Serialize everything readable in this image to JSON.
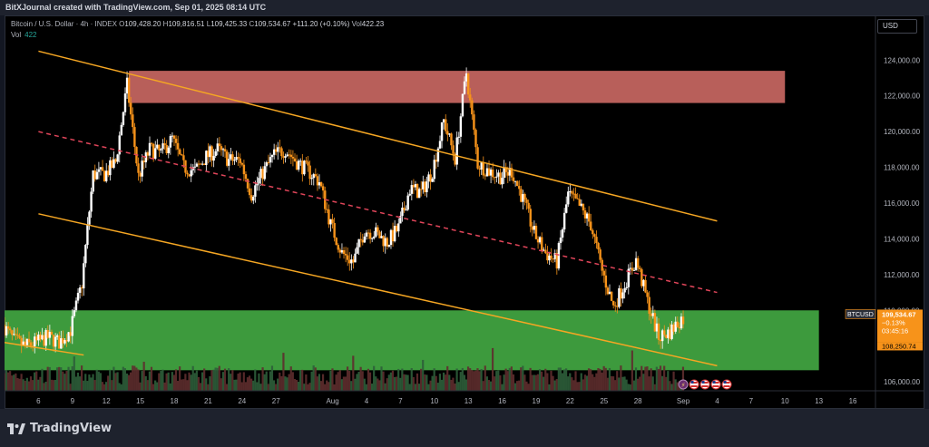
{
  "header": {
    "attribution": "BitXJournal created with TradingView.com, Sep 01, 2025 08:14 UTC"
  },
  "legend": {
    "symbol": "Bitcoin / U.S. Dollar · 4h · INDEX",
    "open_label": "O",
    "open": "109,428.20",
    "high_label": "H",
    "high": "109,816.51",
    "low_label": "L",
    "low": "109,425.33",
    "close_label": "C",
    "close": "109,534.67",
    "change": "+111.20 (+0.10%)",
    "vol_label": "Vol",
    "vol": "422.23",
    "vol_row_label": "Vol",
    "vol_row_value": "422"
  },
  "currency_button": "USD",
  "price_tag": {
    "symbol": "BTCUSD",
    "price": "109,534.67",
    "change": "−0.13%",
    "countdown": "03:45:16",
    "secondary": "108,250.74"
  },
  "branding": {
    "name": "TradingView"
  },
  "colors": {
    "up": "#ffffff",
    "down": "#f7931a",
    "channel": "#f5a623",
    "midline": "#e0455a",
    "resistance_zone": "#b85f5a",
    "support_zone": "#3d9a3d",
    "volume_up": "#2e5e3a",
    "volume_down": "#5e2e2e"
  },
  "icons": [
    "lightning-icon",
    "us-flag-icon"
  ],
  "chart_data": {
    "type": "candlestick",
    "timeframe": "4h",
    "y_axis": {
      "ticks": [
        106000,
        108000,
        110000,
        112000,
        114000,
        116000,
        118000,
        120000,
        122000,
        124000
      ],
      "tick_labels": [
        "106,000.00",
        "108,000.00",
        "110,000.00",
        "112,000.00",
        "114,000.00",
        "116,000.00",
        "118,000.00",
        "120,000.00",
        "122,000.00",
        "124,000.00"
      ],
      "range": [
        105500,
        126500
      ]
    },
    "x_axis": {
      "domain": [
        "2025-07-03",
        "2025-09-18"
      ],
      "ticks": [
        {
          "date": "2025-07-06",
          "label": "6"
        },
        {
          "date": "2025-07-09",
          "label": "9"
        },
        {
          "date": "2025-07-12",
          "label": "12"
        },
        {
          "date": "2025-07-15",
          "label": "15"
        },
        {
          "date": "2025-07-18",
          "label": "18"
        },
        {
          "date": "2025-07-21",
          "label": "21"
        },
        {
          "date": "2025-07-24",
          "label": "24"
        },
        {
          "date": "2025-07-27",
          "label": "27"
        },
        {
          "date": "2025-08-01",
          "label": "Aug"
        },
        {
          "date": "2025-08-04",
          "label": "4"
        },
        {
          "date": "2025-08-07",
          "label": "7"
        },
        {
          "date": "2025-08-10",
          "label": "10"
        },
        {
          "date": "2025-08-13",
          "label": "13"
        },
        {
          "date": "2025-08-16",
          "label": "16"
        },
        {
          "date": "2025-08-19",
          "label": "19"
        },
        {
          "date": "2025-08-22",
          "label": "22"
        },
        {
          "date": "2025-08-25",
          "label": "25"
        },
        {
          "date": "2025-08-28",
          "label": "28"
        },
        {
          "date": "2025-09-01",
          "label": "Sep"
        },
        {
          "date": "2025-09-04",
          "label": "4"
        },
        {
          "date": "2025-09-07",
          "label": "7"
        },
        {
          "date": "2025-09-10",
          "label": "10"
        },
        {
          "date": "2025-09-13",
          "label": "13"
        },
        {
          "date": "2025-09-16",
          "label": "16"
        }
      ]
    },
    "price_path": [
      [
        "2025-07-03",
        109200
      ],
      [
        "2025-07-04",
        108300
      ],
      [
        "2025-07-05",
        108000
      ],
      [
        "2025-07-06",
        108200
      ],
      [
        "2025-07-07",
        108500
      ],
      [
        "2025-07-08",
        108200
      ],
      [
        "2025-07-09",
        108900
      ],
      [
        "2025-07-10",
        111500
      ],
      [
        "2025-07-11",
        117600
      ],
      [
        "2025-07-12",
        117600
      ],
      [
        "2025-07-13",
        118300
      ],
      [
        "2025-07-14",
        122600
      ],
      [
        "2025-07-15",
        117500
      ],
      [
        "2025-07-16",
        119000
      ],
      [
        "2025-07-17",
        118800
      ],
      [
        "2025-07-18",
        119600
      ],
      [
        "2025-07-19",
        118000
      ],
      [
        "2025-07-20",
        117800
      ],
      [
        "2025-07-21",
        118600
      ],
      [
        "2025-07-22",
        119000
      ],
      [
        "2025-07-23",
        118400
      ],
      [
        "2025-07-24",
        118400
      ],
      [
        "2025-07-25",
        116500
      ],
      [
        "2025-07-26",
        117700
      ],
      [
        "2025-07-27",
        118700
      ],
      [
        "2025-07-28",
        119000
      ],
      [
        "2025-07-29",
        118300
      ],
      [
        "2025-07-30",
        117800
      ],
      [
        "2025-07-31",
        117200
      ],
      [
        "2025-08-01",
        114800
      ],
      [
        "2025-08-02",
        113200
      ],
      [
        "2025-08-03",
        112700
      ],
      [
        "2025-08-04",
        114500
      ],
      [
        "2025-08-05",
        114300
      ],
      [
        "2025-08-06",
        113800
      ],
      [
        "2025-08-07",
        114600
      ],
      [
        "2025-08-08",
        116800
      ],
      [
        "2025-08-09",
        116600
      ],
      [
        "2025-08-10",
        117800
      ],
      [
        "2025-08-11",
        120600
      ],
      [
        "2025-08-12",
        118500
      ],
      [
        "2025-08-13",
        123300
      ],
      [
        "2025-08-14",
        118200
      ],
      [
        "2025-08-15",
        117800
      ],
      [
        "2025-08-16",
        117500
      ],
      [
        "2025-08-17",
        117800
      ],
      [
        "2025-08-18",
        116200
      ],
      [
        "2025-08-19",
        114300
      ],
      [
        "2025-08-20",
        113200
      ],
      [
        "2025-08-21",
        112700
      ],
      [
        "2025-08-22",
        116500
      ],
      [
        "2025-08-23",
        115800
      ],
      [
        "2025-08-24",
        114800
      ],
      [
        "2025-08-25",
        112200
      ],
      [
        "2025-08-26",
        110200
      ],
      [
        "2025-08-27",
        111500
      ],
      [
        "2025-08-28",
        112800
      ],
      [
        "2025-08-29",
        110500
      ],
      [
        "2025-08-30",
        108500
      ],
      [
        "2025-08-31",
        108800
      ],
      [
        "2025-09-01",
        109535
      ]
    ],
    "annotations": {
      "channel_upper": {
        "from": [
          "2025-07-06",
          124500
        ],
        "to": [
          "2025-09-04",
          115000
        ]
      },
      "channel_lower": {
        "from": [
          "2025-07-06",
          115400
        ],
        "to": [
          "2025-09-04",
          106900
        ]
      },
      "channel_mid": {
        "from": [
          "2025-07-06",
          120000
        ],
        "to": [
          "2025-09-04",
          111000
        ]
      },
      "extra_line": {
        "from": [
          "2025-07-03",
          108200
        ],
        "to": [
          "2025-07-10",
          107500
        ]
      },
      "resistance_zone": {
        "from": "2025-07-14",
        "to": "2025-09-10",
        "low": 121600,
        "high": 123400
      },
      "support_zone": {
        "from": "2025-07-03",
        "to": "2025-09-13",
        "low": 106650,
        "high": 110000
      }
    }
  }
}
